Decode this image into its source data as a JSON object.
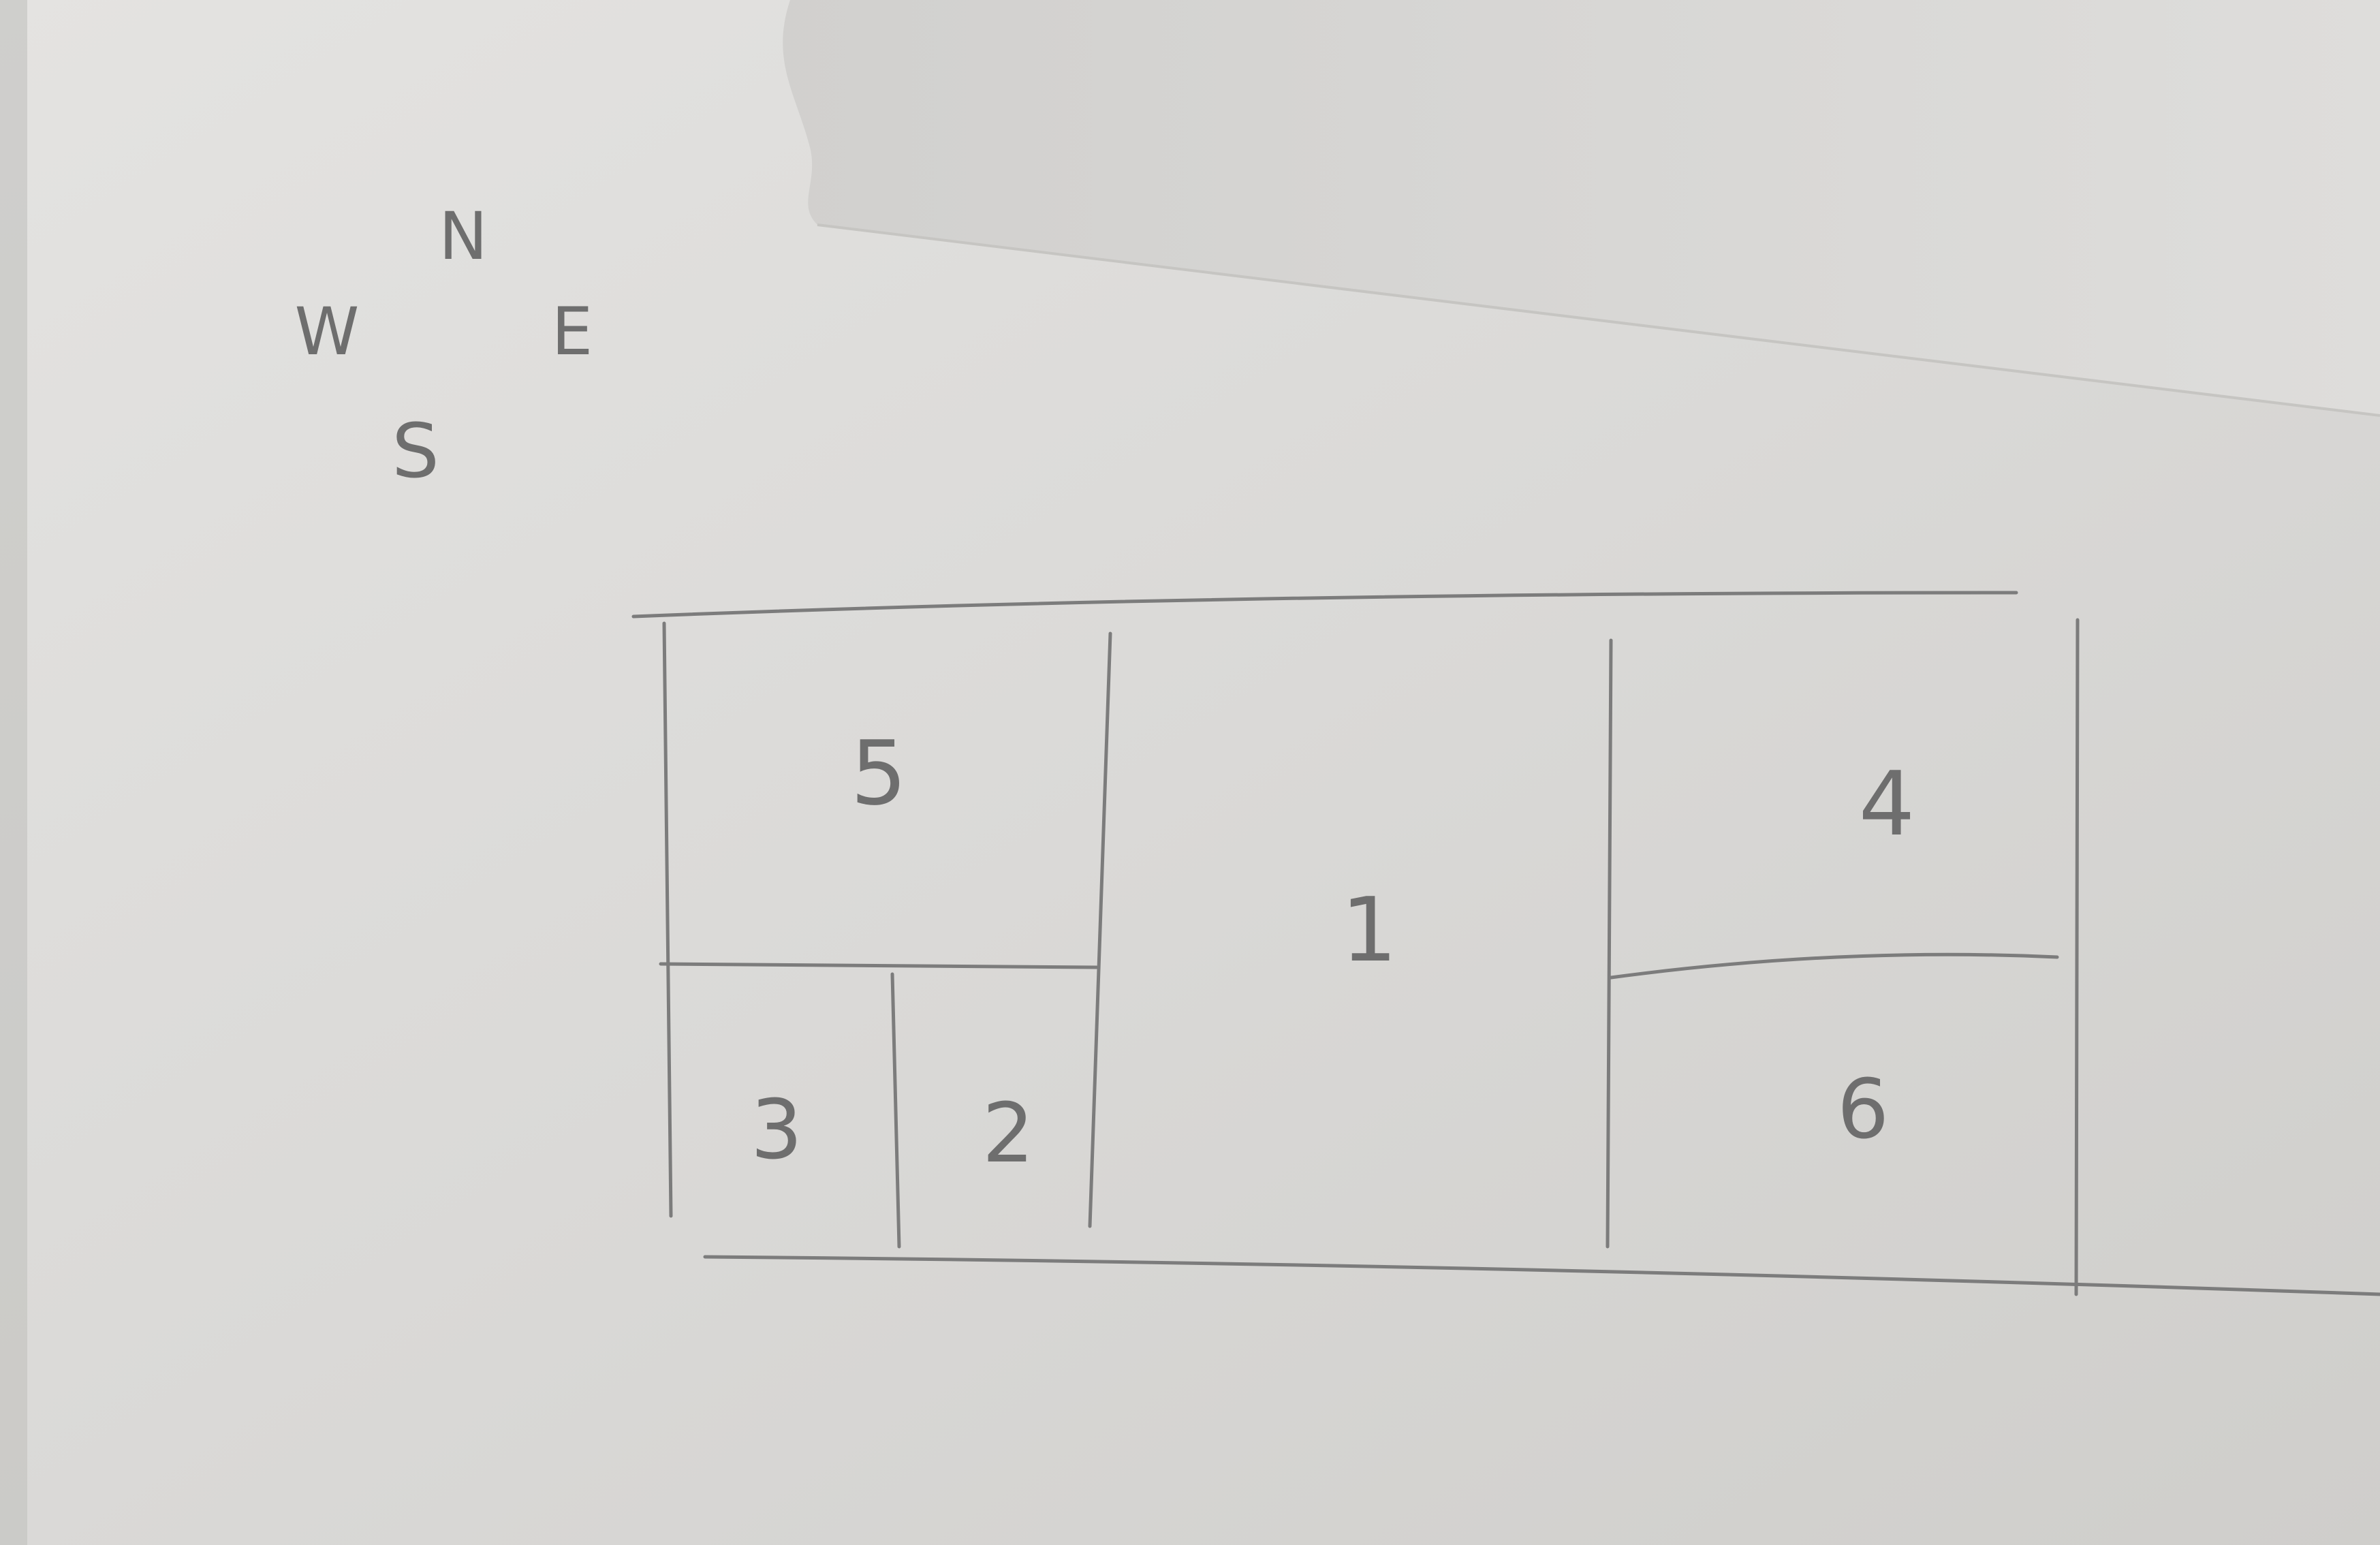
{
  "compass": {
    "north": "N",
    "west": "W",
    "east": "E",
    "south": "S"
  },
  "rooms": {
    "r1": "1",
    "r2": "2",
    "r3": "3",
    "r4": "4",
    "r5": "5",
    "r6": "6"
  },
  "colors": {
    "paper": "#dcdbd9",
    "paper_shadow": "#cfcecb",
    "pencil": "#7c7c7c"
  }
}
